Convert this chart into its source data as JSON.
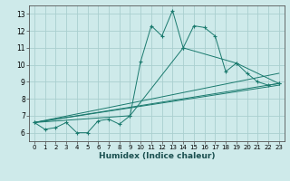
{
  "xlabel": "Humidex (Indice chaleur)",
  "background_color": "#ceeaea",
  "grid_color": "#aacfcf",
  "line_color": "#1a7a6e",
  "xlim": [
    -0.5,
    23.5
  ],
  "ylim": [
    5.5,
    13.5
  ],
  "xticks": [
    0,
    1,
    2,
    3,
    4,
    5,
    6,
    7,
    8,
    9,
    10,
    11,
    12,
    13,
    14,
    15,
    16,
    17,
    18,
    19,
    20,
    21,
    22,
    23
  ],
  "yticks": [
    6,
    7,
    8,
    9,
    10,
    11,
    12,
    13
  ],
  "series1_x": [
    0,
    1,
    2,
    3,
    4,
    5,
    6,
    7,
    8,
    9,
    10,
    11,
    12,
    13,
    14,
    15,
    16,
    17,
    18,
    19,
    20,
    21,
    22,
    23
  ],
  "series1_y": [
    6.6,
    6.2,
    6.3,
    6.6,
    6.0,
    6.0,
    6.7,
    6.8,
    6.5,
    7.0,
    10.2,
    12.3,
    11.7,
    13.2,
    11.0,
    12.3,
    12.2,
    11.7,
    9.6,
    10.1,
    9.5,
    9.0,
    8.8,
    8.9
  ],
  "series2_x": [
    0,
    9,
    14,
    19,
    23
  ],
  "series2_y": [
    6.6,
    7.0,
    11.0,
    10.1,
    8.9
  ],
  "series3_x": [
    0,
    23
  ],
  "series3_y": [
    6.6,
    8.8
  ],
  "series4_x": [
    0,
    23
  ],
  "series4_y": [
    6.6,
    8.9
  ],
  "series5_x": [
    0,
    23
  ],
  "series5_y": [
    6.6,
    9.5
  ]
}
